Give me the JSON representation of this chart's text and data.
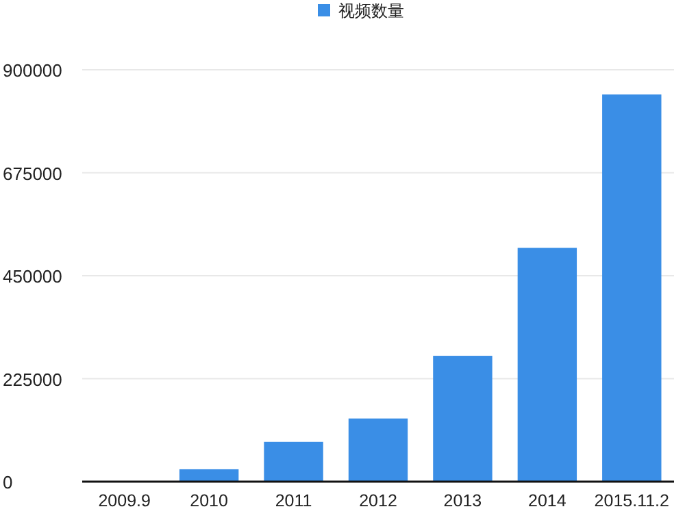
{
  "chart_data": {
    "type": "bar",
    "categories": [
      "2009.9",
      "2010",
      "2011",
      "2012",
      "2013",
      "2014",
      "2015.11.2"
    ],
    "series": [
      {
        "name": "视频数量",
        "color": "#3a8ee6",
        "values": [
          0,
          27000,
          87000,
          138000,
          275000,
          511000,
          846000
        ]
      }
    ],
    "ylim": [
      0,
      900000
    ],
    "yticks": [
      0,
      225000,
      450000,
      675000,
      900000
    ],
    "grid": "y",
    "legend": "top"
  }
}
